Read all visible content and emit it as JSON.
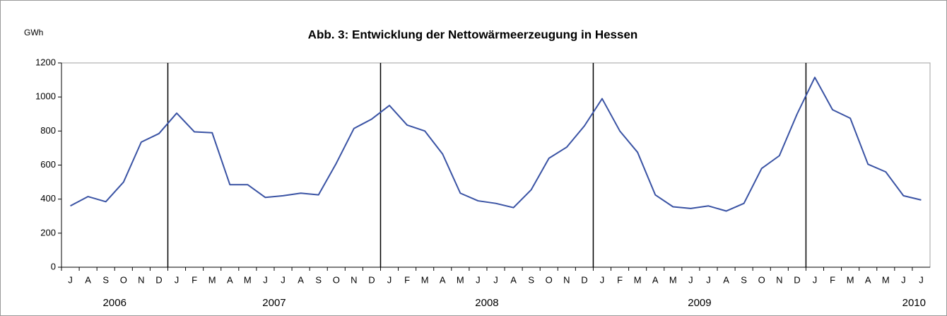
{
  "chart_data": {
    "type": "line",
    "title": "Abb. 3: Entwicklung der Nettowärmeerzeugung in Hessen",
    "y_unit": "GWh",
    "category_groups": [
      {
        "label": "2006",
        "categories": [
          "J",
          "A",
          "S",
          "O",
          "N",
          "D"
        ]
      },
      {
        "label": "2007",
        "categories": [
          "J",
          "F",
          "M",
          "A",
          "M",
          "J",
          "J",
          "A",
          "S",
          "O",
          "N",
          "D"
        ]
      },
      {
        "label": "2008",
        "categories": [
          "J",
          "F",
          "M",
          "A",
          "M",
          "J",
          "J",
          "A",
          "S",
          "O",
          "N",
          "D"
        ]
      },
      {
        "label": "2009",
        "categories": [
          "J",
          "F",
          "M",
          "A",
          "M",
          "J",
          "J",
          "A",
          "S",
          "O",
          "N",
          "D"
        ]
      },
      {
        "label": "2010",
        "categories": [
          "J",
          "F",
          "M",
          "A",
          "M",
          "J",
          "J"
        ]
      }
    ],
    "values": [
      360,
      415,
      385,
      500,
      735,
      785,
      905,
      795,
      790,
      485,
      485,
      410,
      420,
      435,
      425,
      610,
      815,
      870,
      950,
      835,
      800,
      665,
      435,
      390,
      375,
      350,
      455,
      640,
      705,
      830,
      990,
      800,
      675,
      425,
      355,
      345,
      360,
      330,
      375,
      580,
      655,
      900,
      1115,
      925,
      875,
      605,
      560,
      420,
      395
    ],
    "color": "#3a53a4",
    "ylim": [
      0,
      1200
    ],
    "yticks": [
      0,
      200,
      400,
      600,
      800,
      1000,
      1200
    ],
    "grid": false
  }
}
